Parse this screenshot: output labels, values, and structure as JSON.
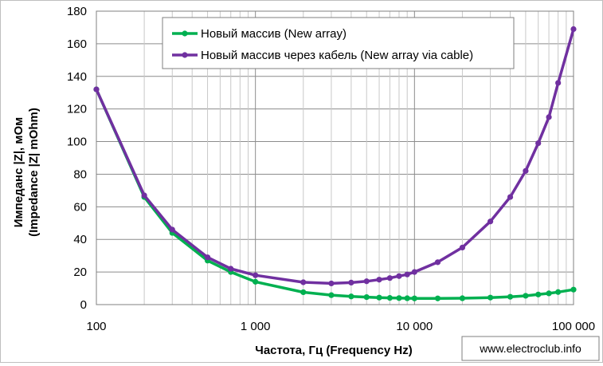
{
  "chart_data": {
    "type": "line",
    "xscale": "log",
    "xlim": [
      100,
      100000
    ],
    "ylim": [
      0,
      180
    ],
    "yticks": [
      0,
      20,
      40,
      60,
      80,
      100,
      120,
      140,
      160,
      180
    ],
    "ytick_labels": [
      "0",
      "20",
      "40",
      "60",
      "80",
      "100",
      "120",
      "140",
      "160",
      "180"
    ],
    "xticks": [
      100,
      1000,
      10000,
      100000
    ],
    "xtick_labels": [
      "100",
      "1 000",
      "10 000",
      "100 000"
    ],
    "xlabel": "Частота, Гц (Frequency Hz)",
    "ylabel_line1": "Импеданс |Z|, мОм",
    "ylabel_line2": "(Impedance |Z| mOhm)",
    "grid": true,
    "legend_position": "top-center",
    "series": [
      {
        "name": "Новый массив (New array)",
        "color": "#00b050",
        "x": [
          100,
          200,
          300,
          500,
          700,
          1000,
          2000,
          3000,
          4000,
          5000,
          6000,
          7000,
          8000,
          9000,
          10000,
          14000,
          20000,
          30000,
          40000,
          50000,
          60000,
          70000,
          80000,
          100000
        ],
        "y": [
          132,
          66,
          44,
          27,
          20,
          14,
          7.6,
          5.8,
          5.0,
          4.6,
          4.3,
          4.1,
          4.0,
          3.9,
          3.8,
          3.8,
          3.9,
          4.3,
          4.8,
          5.4,
          6.2,
          6.9,
          7.7,
          9.2
        ]
      },
      {
        "name": "Новый массив через кабель (New array via cable)",
        "color": "#7030a0",
        "x": [
          100,
          200,
          300,
          500,
          700,
          1000,
          2000,
          3000,
          4000,
          5000,
          6000,
          7000,
          8000,
          9000,
          10000,
          14000,
          20000,
          30000,
          40000,
          50000,
          60000,
          70000,
          80000,
          100000
        ],
        "y": [
          132,
          67,
          46,
          29,
          22,
          18,
          13.7,
          13.0,
          13.5,
          14.3,
          15.3,
          16.3,
          17.5,
          18.5,
          20,
          26,
          35,
          51,
          66,
          82,
          99,
          115,
          136,
          169
        ]
      }
    ]
  },
  "watermark": "www.electroclub.info"
}
